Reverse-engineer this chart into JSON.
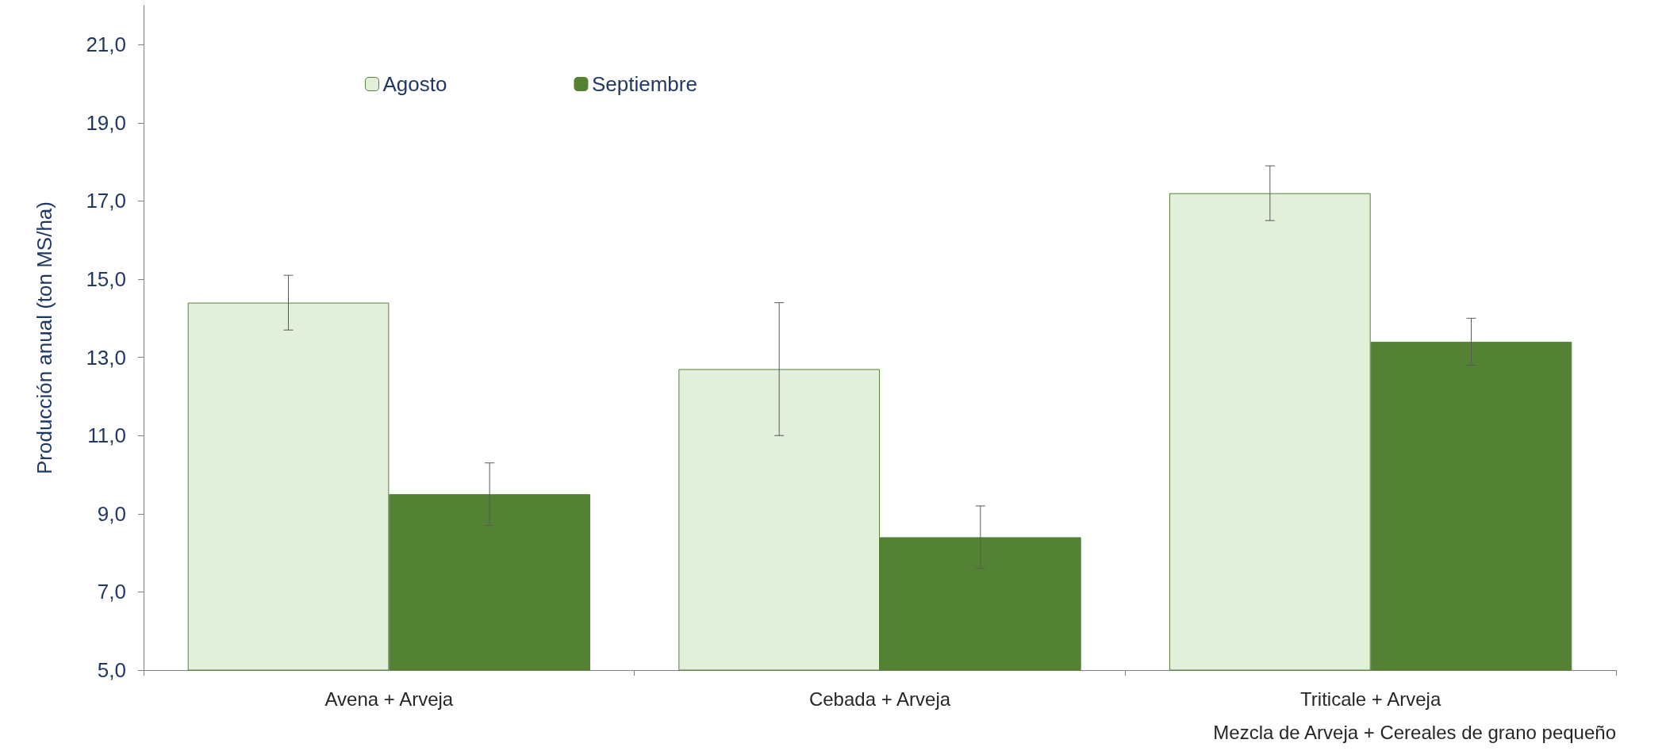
{
  "chart_data": {
    "type": "bar",
    "ylabel": "Producción anual (ton MS/ha)",
    "xlabel": "Mezcla de Arveja + Cereales de grano pequeño",
    "categories": [
      "Avena + Arveja",
      "Cebada + Arveja",
      "Triticale + Arveja"
    ],
    "series": [
      {
        "name": "Agosto",
        "color": "#e2efda",
        "values": [
          14.4,
          12.7,
          17.2
        ],
        "errors": [
          0.7,
          1.7,
          0.7
        ]
      },
      {
        "name": "Septiembre",
        "color": "#548235",
        "values": [
          9.5,
          8.4,
          13.4
        ],
        "errors": [
          0.8,
          0.8,
          0.6
        ]
      }
    ],
    "ylim": [
      5,
      22
    ],
    "yticks": [
      {
        "value": 5,
        "label": "5,0"
      },
      {
        "value": 7,
        "label": "7,0"
      },
      {
        "value": 9,
        "label": "9,0"
      },
      {
        "value": 11,
        "label": "11,0"
      },
      {
        "value": 13,
        "label": "13,0"
      },
      {
        "value": 15,
        "label": "15,0"
      },
      {
        "value": 17,
        "label": "17,0"
      },
      {
        "value": 19,
        "label": "19,0"
      },
      {
        "value": 21,
        "label": "21,0"
      }
    ],
    "grid": false,
    "legend": "top left"
  }
}
